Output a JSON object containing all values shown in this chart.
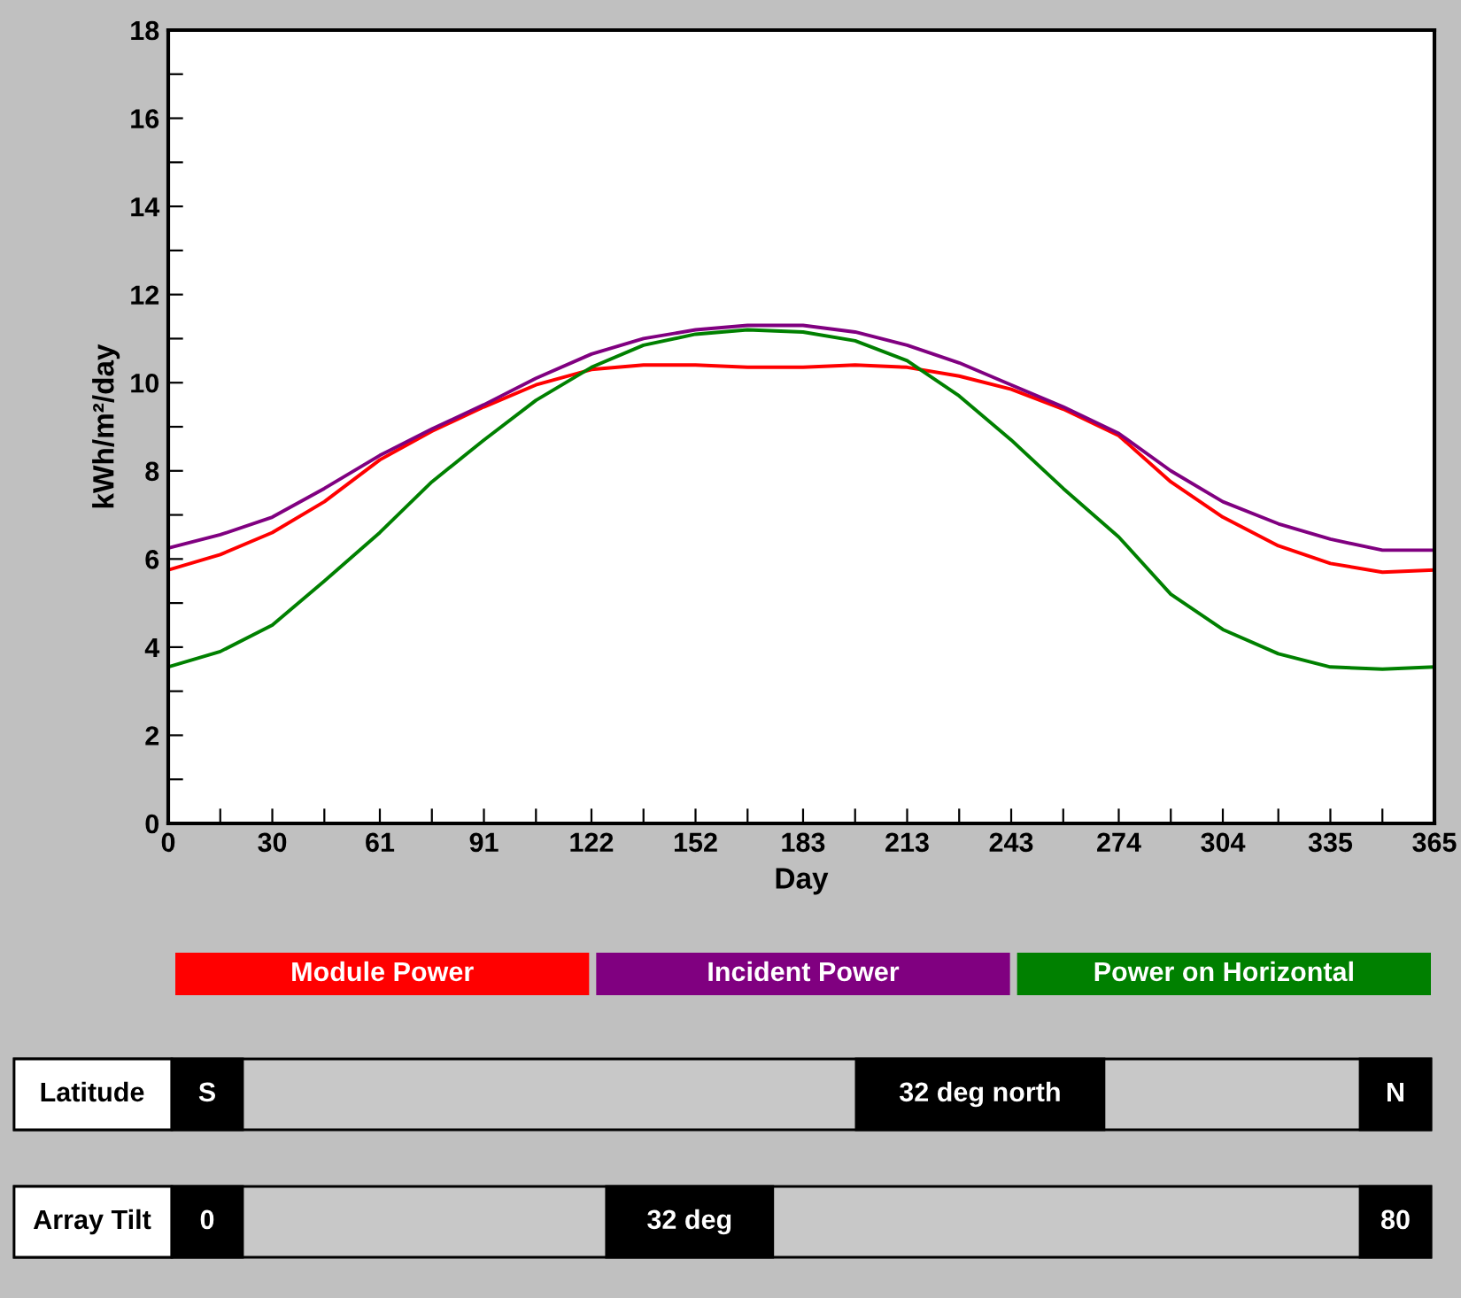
{
  "chart_data": {
    "type": "line",
    "xlabel": "Day",
    "ylabel": "kWh/m²/day",
    "x": [
      0,
      15,
      30,
      45,
      61,
      76,
      91,
      106,
      122,
      137,
      152,
      167,
      183,
      198,
      213,
      228,
      243,
      258,
      274,
      289,
      304,
      320,
      335,
      350,
      365
    ],
    "series": [
      {
        "name": "Module Power",
        "color": "#ff0000",
        "values": [
          5.75,
          6.1,
          6.6,
          7.3,
          8.25,
          8.9,
          9.45,
          9.95,
          10.3,
          10.4,
          10.4,
          10.35,
          10.35,
          10.4,
          10.35,
          10.15,
          9.85,
          9.4,
          8.8,
          7.75,
          6.95,
          6.3,
          5.9,
          5.7,
          5.75
        ]
      },
      {
        "name": "Incident Power",
        "color": "#800080",
        "values": [
          6.25,
          6.55,
          6.95,
          7.6,
          8.35,
          8.95,
          9.5,
          10.1,
          10.65,
          11.0,
          11.2,
          11.3,
          11.3,
          11.15,
          10.85,
          10.45,
          9.95,
          9.45,
          8.85,
          8.0,
          7.3,
          6.8,
          6.45,
          6.2,
          6.2
        ]
      },
      {
        "name": "Power on Horizontal",
        "color": "#008000",
        "values": [
          3.55,
          3.9,
          4.5,
          5.5,
          6.6,
          7.75,
          8.7,
          9.6,
          10.35,
          10.85,
          11.1,
          11.2,
          11.15,
          10.95,
          10.5,
          9.7,
          8.7,
          7.6,
          6.5,
          5.2,
          4.4,
          3.85,
          3.55,
          3.5,
          3.55
        ]
      }
    ],
    "xlim": [
      0,
      365
    ],
    "xticks": [
      0,
      {
        "value": 15,
        "label": null
      },
      30,
      {
        "value": 45,
        "label": null
      },
      61,
      {
        "value": 76,
        "label": null
      },
      91,
      {
        "value": 106,
        "label": null
      },
      122,
      {
        "value": 137,
        "label": null
      },
      152,
      {
        "value": 167,
        "label": null
      },
      183,
      {
        "value": 198,
        "label": null
      },
      213,
      {
        "value": 228,
        "label": null
      },
      243,
      {
        "value": 258,
        "label": null
      },
      274,
      {
        "value": 289,
        "label": null
      },
      304,
      {
        "value": 320,
        "label": null
      },
      335,
      {
        "value": 350,
        "label": null
      },
      365
    ],
    "ylim": [
      0,
      18
    ],
    "yticks": [
      0,
      {
        "value": 1,
        "label": null
      },
      2,
      {
        "value": 3,
        "label": null
      },
      4,
      {
        "value": 5,
        "label": null
      },
      6,
      {
        "value": 7,
        "label": null
      },
      8,
      {
        "value": 9,
        "label": null
      },
      10,
      {
        "value": 11,
        "label": null
      },
      12,
      {
        "value": 13,
        "label": null
      },
      14,
      {
        "value": 15,
        "label": null
      },
      16,
      {
        "value": 17,
        "label": null
      },
      18
    ],
    "grid": false,
    "legend": "bottom",
    "marker": "none",
    "line_style": "solid",
    "annotations": [
      "Latitude",
      "S",
      "32 deg north",
      "N",
      "Array Tilt",
      "0",
      "32 deg",
      "80"
    ]
  }
}
